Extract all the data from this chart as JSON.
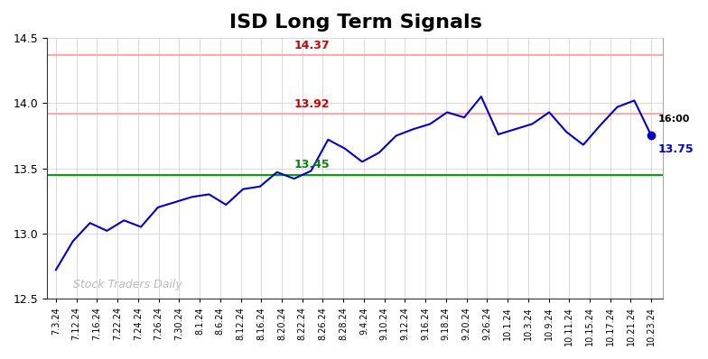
{
  "title": "ISD Long Term Signals",
  "title_fontsize": 16,
  "line_color": "#0000cc",
  "background_color": "#ffffff",
  "grid_color": "#cccccc",
  "ylim": [
    12.5,
    14.5
  ],
  "yticks": [
    12.5,
    13.0,
    13.5,
    14.0,
    14.5
  ],
  "hline_red1": 14.37,
  "hline_red2": 13.92,
  "hline_green": 13.45,
  "hline_red1_color": "#ffaaaa",
  "hline_red2_color": "#ffaaaa",
  "hline_green_color": "#00aa00",
  "label_red1": "14.37",
  "label_red2": "13.92",
  "label_green": "13.45",
  "label_red_color": "#cc0000",
  "label_green_color": "#008800",
  "last_label": "16:00",
  "last_value_label": "13.75",
  "last_dot_color": "#0000cc",
  "watermark": "Stock Traders Daily",
  "watermark_color": "#bbbbbb",
  "x_labels": [
    "7.3.24",
    "7.12.24",
    "7.16.24",
    "7.22.24",
    "7.24.24",
    "7.26.24",
    "7.30.24",
    "8.1.24",
    "8.6.24",
    "8.12.24",
    "8.16.24",
    "8.20.24",
    "8.22.24",
    "8.26.24",
    "8.28.24",
    "9.4.24",
    "9.10.24",
    "9.12.24",
    "9.16.24",
    "9.18.24",
    "9.20.24",
    "9.26.24",
    "10.1.24",
    "10.3.24",
    "10.9.24",
    "10.11.24",
    "10.15.24",
    "10.17.24",
    "10.21.24",
    "10.23.24"
  ],
  "y_values": [
    12.72,
    12.94,
    13.08,
    13.02,
    13.1,
    13.05,
    13.2,
    13.24,
    13.28,
    13.3,
    13.22,
    13.34,
    13.36,
    13.47,
    13.42,
    13.48,
    13.72,
    13.65,
    13.55,
    13.62,
    13.75,
    13.8,
    13.84,
    13.93,
    13.89,
    14.05,
    13.76,
    13.8,
    13.84,
    13.93,
    13.78,
    13.68,
    13.83,
    13.97,
    14.02,
    13.75
  ]
}
